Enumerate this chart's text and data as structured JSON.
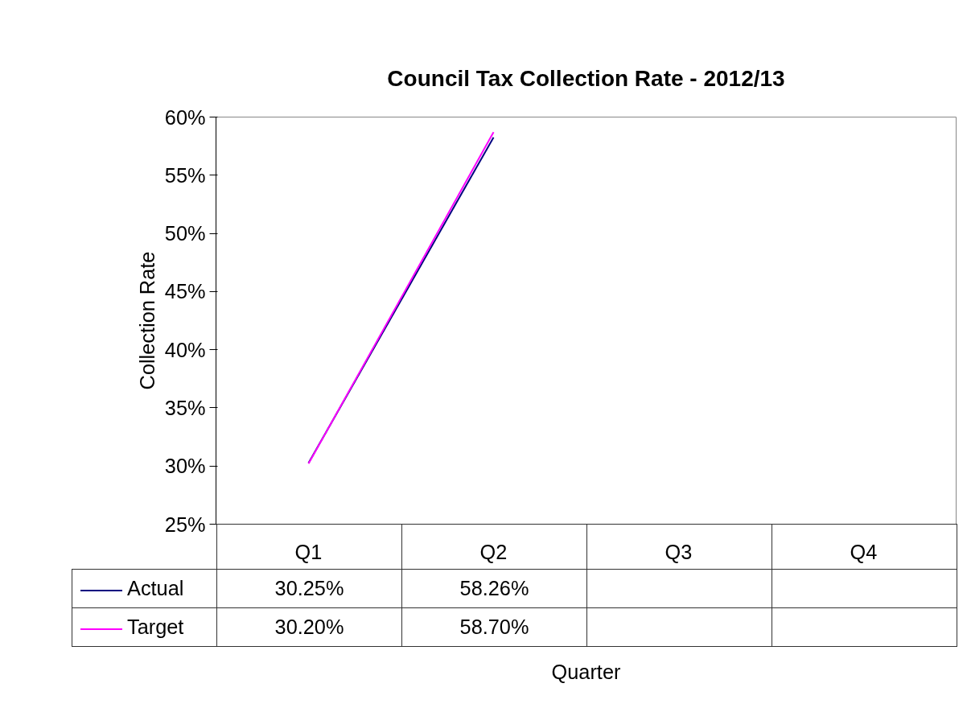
{
  "chart_data": {
    "type": "line",
    "title": "Council Tax Collection Rate - 2012/13",
    "xlabel": "Quarter",
    "ylabel": "Collection Rate",
    "categories": [
      "Q1",
      "Q2",
      "Q3",
      "Q4"
    ],
    "series": [
      {
        "name": "Actual",
        "color": "#000080",
        "values": [
          30.25,
          58.26,
          null,
          null
        ],
        "value_labels": [
          "30.25%",
          "58.26%",
          null,
          null
        ]
      },
      {
        "name": "Target",
        "color": "#ff00ff",
        "values": [
          30.2,
          58.7,
          null,
          null
        ],
        "value_labels": [
          "30.20%",
          "58.70%",
          null,
          null
        ]
      }
    ],
    "ylim": [
      25,
      60
    ],
    "yticks": [
      {
        "value": 25,
        "label": "25%"
      },
      {
        "value": 30,
        "label": "30%"
      },
      {
        "value": 35,
        "label": "35%"
      },
      {
        "value": 40,
        "label": "40%"
      },
      {
        "value": 45,
        "label": "45%"
      },
      {
        "value": 50,
        "label": "50%"
      },
      {
        "value": 55,
        "label": "55%"
      },
      {
        "value": 60,
        "label": "60%"
      }
    ],
    "grid": false,
    "legend": "bottom"
  }
}
